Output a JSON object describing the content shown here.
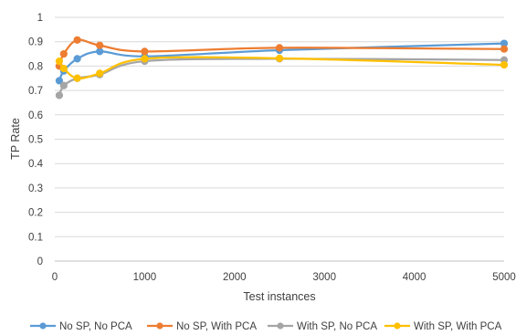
{
  "chart_data": {
    "type": "line",
    "title": "",
    "xlabel": "Test instances",
    "ylabel": "TP Rate",
    "xlim": [
      0,
      5000
    ],
    "ylim": [
      0,
      1
    ],
    "x_ticks": [
      0,
      1000,
      2000,
      3000,
      4000,
      5000
    ],
    "y_ticks": [
      0,
      0.1,
      0.2,
      0.3,
      0.4,
      0.5,
      0.6,
      0.7,
      0.8,
      0.9,
      1
    ],
    "grid": "horizontal",
    "legend": "bottom",
    "x": [
      50,
      100,
      250,
      500,
      1000,
      2500,
      5000
    ],
    "series": [
      {
        "name": "No SP, No PCA",
        "color": "#5b9bd5",
        "values": [
          0.74,
          0.78,
          0.83,
          0.86,
          0.84,
          0.865,
          0.893
        ]
      },
      {
        "name": "No SP, With PCA",
        "color": "#ed7d31",
        "values": [
          0.8,
          0.85,
          0.907,
          0.885,
          0.86,
          0.875,
          0.87
        ]
      },
      {
        "name": "With SP, No PCA",
        "color": "#a5a5a5",
        "values": [
          0.68,
          0.72,
          0.75,
          0.765,
          0.82,
          0.83,
          0.825
        ]
      },
      {
        "name": "With SP, With PCA",
        "color": "#ffc000",
        "values": [
          0.82,
          0.79,
          0.75,
          0.77,
          0.83,
          0.832,
          0.805
        ]
      }
    ]
  }
}
